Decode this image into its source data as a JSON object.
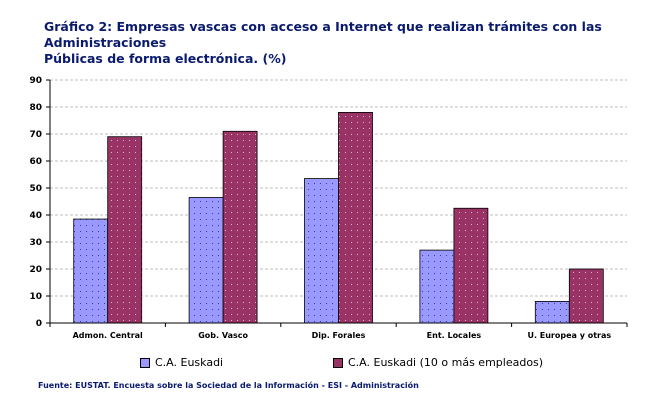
{
  "title_line1": "Gráfico 2: Empresas vascas con acceso a Internet que realizan trámites con las Administraciones",
  "title_line2": "Públicas de forma electrónica. (%)",
  "source": "Fuente: EUSTAT. Encuesta sobre la Sociedad de la Información - ESI - Administración",
  "colors": {
    "series1": "#9999ff",
    "series2": "#993366",
    "grid": "#bfbfbf"
  },
  "chart_data": {
    "type": "bar",
    "title": "Gráfico 2: Empresas vascas con acceso a Internet que realizan trámites con las Administraciones Públicas de forma electrónica. (%)",
    "categories": [
      "Admon. Central",
      "Gob. Vasco",
      "Dip. Forales",
      "Ent. Locales",
      "U. Europea y otras"
    ],
    "series": [
      {
        "name": "C.A. Euskadi",
        "values": [
          38.5,
          46.5,
          53.5,
          27,
          8
        ]
      },
      {
        "name": "C.A. Euskadi (10 o más empleados)",
        "values": [
          69,
          71,
          78,
          42.5,
          20
        ]
      }
    ],
    "ylim": [
      0,
      90
    ],
    "yticks": [
      "0",
      "10",
      "20",
      "30",
      "40",
      "50",
      "60",
      "70",
      "80",
      "90"
    ],
    "xlabel": "",
    "ylabel": "",
    "grid": true,
    "legend": "bottom"
  }
}
